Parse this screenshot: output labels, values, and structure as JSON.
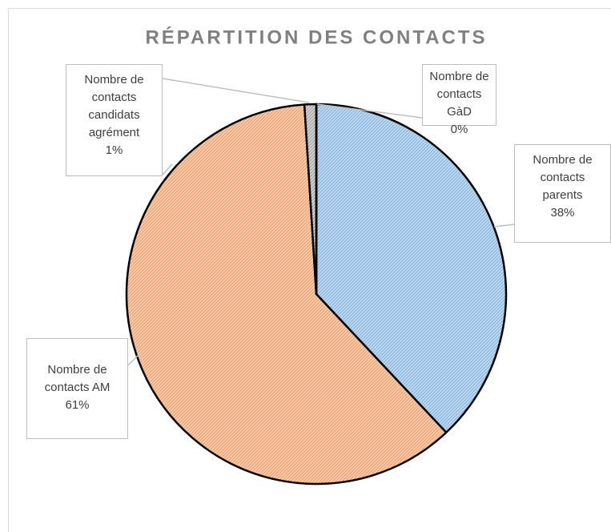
{
  "chart_data": {
    "type": "pie",
    "title": "RÉPARTITION DES CONTACTS",
    "categories": [
      "Nombre de contacts parents",
      "Nombre de contacts AM",
      "Nombre de contacts candidats agrément",
      "Nombre de contacts GàD"
    ],
    "values": [
      38,
      61,
      1,
      0
    ],
    "value_labels": [
      "38%",
      "61%",
      "1%",
      "0%"
    ],
    "colors": [
      "#bdd7ee",
      "#f8cbad",
      "#d0d0d0",
      "#ffd966"
    ],
    "pattern_colors": [
      "#5b9bd5",
      "#ed7d31",
      "#7f7f7f",
      "#bf9000"
    ]
  }
}
